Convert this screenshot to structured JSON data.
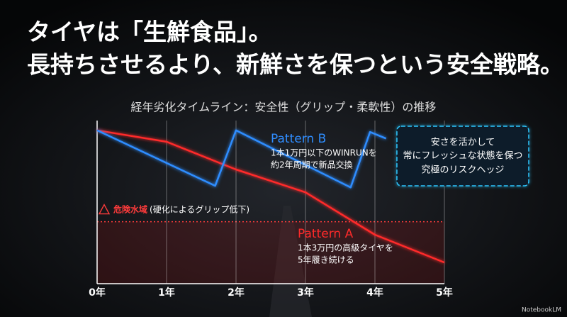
{
  "title_lines": [
    "タイヤは「生鮮食品」。",
    "長持ちさせるより、新鮮さを保つという安全戦略。"
  ],
  "chart_data": {
    "type": "line",
    "title": "経年劣化タイムライン：安全性（グリップ・柔軟性）の推移",
    "xlim": [
      0,
      5
    ],
    "xticks": [
      {
        "value": 0,
        "label": "0年"
      },
      {
        "value": 1,
        "label": "1年"
      },
      {
        "value": 2,
        "label": "2年"
      },
      {
        "value": 3,
        "label": "3年"
      },
      {
        "value": 4,
        "label": "4年"
      },
      {
        "value": 5,
        "label": "5年"
      }
    ],
    "ylim": [
      0,
      100
    ],
    "yticks": [],
    "grid": true,
    "series": [
      {
        "name": "Pattern A",
        "color": "#ff2a2a",
        "x": [
          0,
          1,
          2,
          3,
          4,
          5
        ],
        "values": [
          94,
          87,
          70,
          56,
          30,
          13
        ],
        "note": [
          "1本3万円の高級タイヤを",
          "5年履き続ける"
        ]
      },
      {
        "name": "Pattern B",
        "color": "#2f8dff",
        "x": [
          0,
          1.7,
          2.0,
          3.65,
          3.93,
          4.16
        ],
        "values": [
          94,
          60,
          94,
          59,
          93,
          89
        ],
        "note": [
          "1本1万円以下のWINRUNを",
          "約2年周期で新品交換"
        ]
      }
    ],
    "threshold": 38,
    "threshold_label": "危険水域",
    "threshold_note": "(硬化によるグリップ低下)",
    "callout": [
      "安さを活かして",
      "常にフレッシュな状態を保つ",
      "究極のリスクヘッジ"
    ]
  },
  "watermark": "NotebookLM"
}
